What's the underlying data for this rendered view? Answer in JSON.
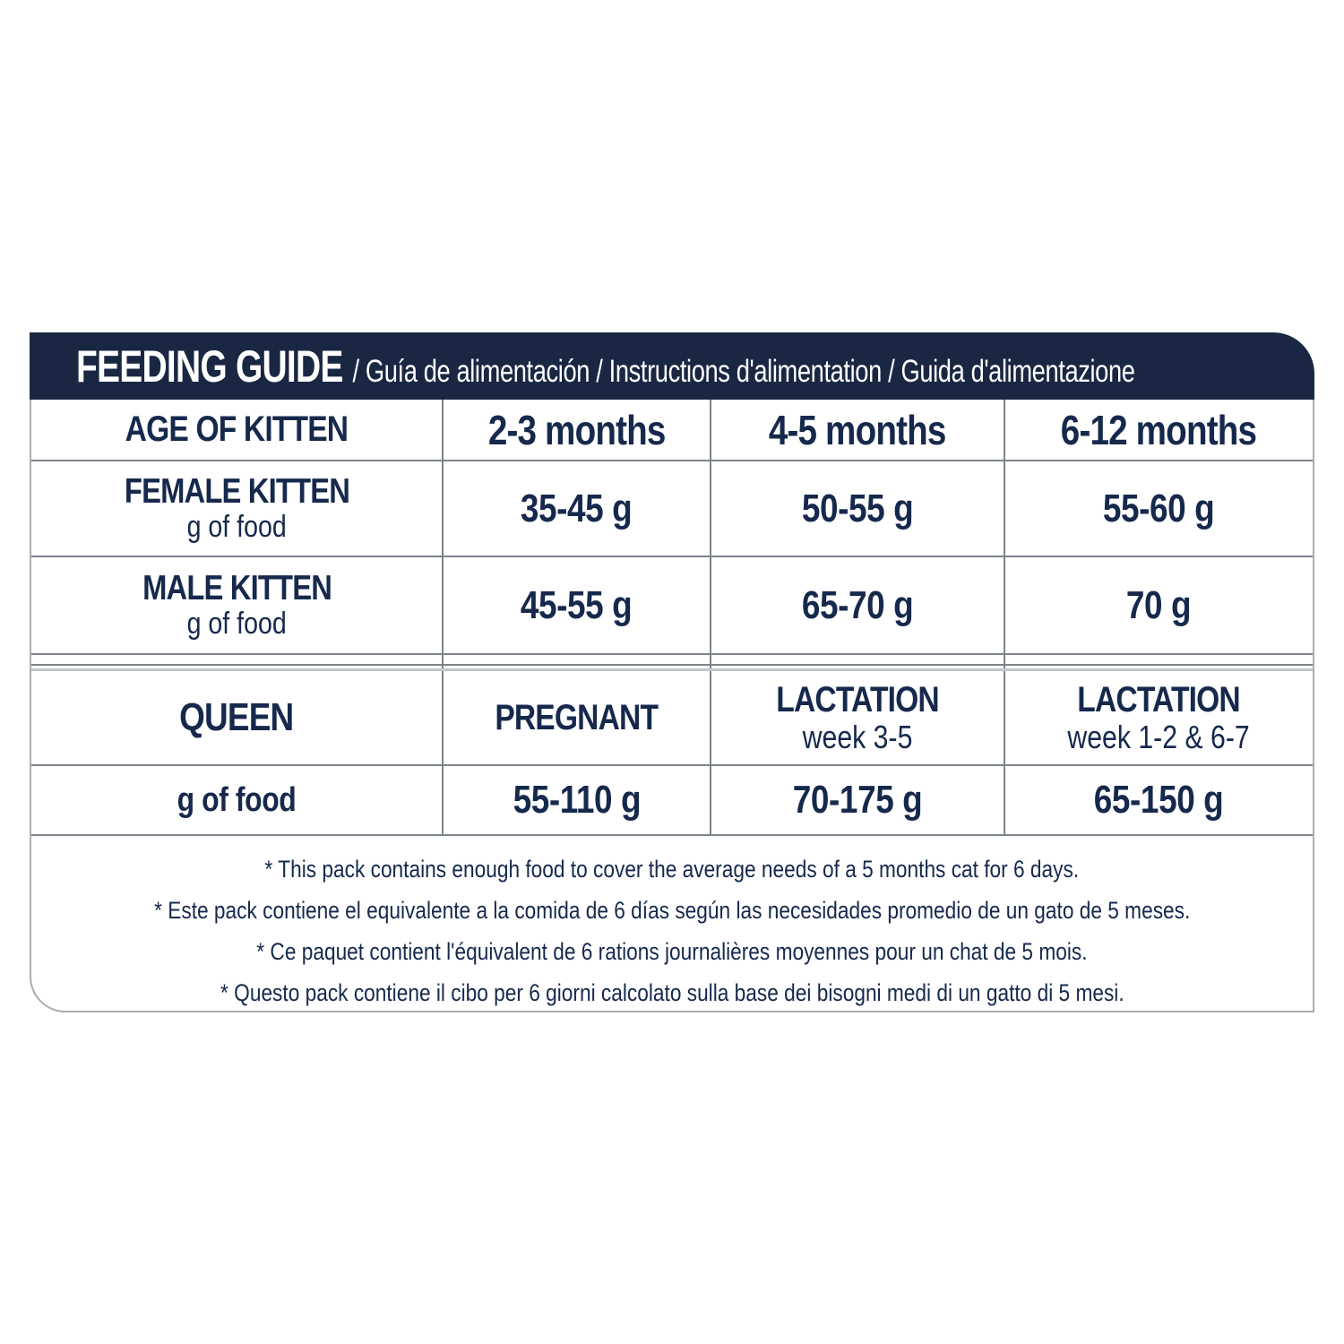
{
  "header": {
    "title": "FEEDING GUIDE",
    "subtitle": "/ Guía de alimentación / Instructions d'alimentation / Guida d'alimentazione"
  },
  "table": {
    "age_header": {
      "label": "AGE OF KITTEN",
      "columns": [
        "2-3 months",
        "4-5 months",
        "6-12 months"
      ]
    },
    "rows": [
      {
        "label": "FEMALE KITTEN",
        "sublabel": "g of food",
        "values": [
          "35-45 g",
          "50-55 g",
          "55-60 g"
        ]
      },
      {
        "label": "MALE KITTEN",
        "sublabel": "g of food",
        "values": [
          "45-55 g",
          "65-70 g",
          "70 g"
        ]
      }
    ],
    "queen_header": {
      "label": "QUEEN",
      "columns": [
        {
          "title": "PREGNANT",
          "subtitle": ""
        },
        {
          "title": "LACTATION",
          "subtitle": "week 3-5"
        },
        {
          "title": "LACTATION",
          "subtitle": "week 1-2 & 6-7"
        }
      ]
    },
    "queen_row": {
      "label": "g of food",
      "values": [
        "55-110 g",
        "70-175 g",
        "65-150 g"
      ]
    }
  },
  "footnotes": [
    "* This pack contains enough food to cover the average needs of a 5 months cat for 6 days.",
    "* Este pack contiene el equivalente a la comida de 6 días según las necesidades promedio de un gato de 5 meses.",
    "* Ce paquet contient l'équivalent de 6 rations journalières moyennes pour un chat de 5 mois.",
    "* Questo pack contiene il cibo per 6 giorni calcolato sulla base dei bisogni medi di un gatto di 5 mesi."
  ],
  "colors": {
    "header_navy": "#1a2743",
    "text_navy": "#16294d",
    "grid_line": "#7d848c",
    "grid_line_light": "#c3c6ca",
    "outer_border": "#a9aeb4"
  }
}
